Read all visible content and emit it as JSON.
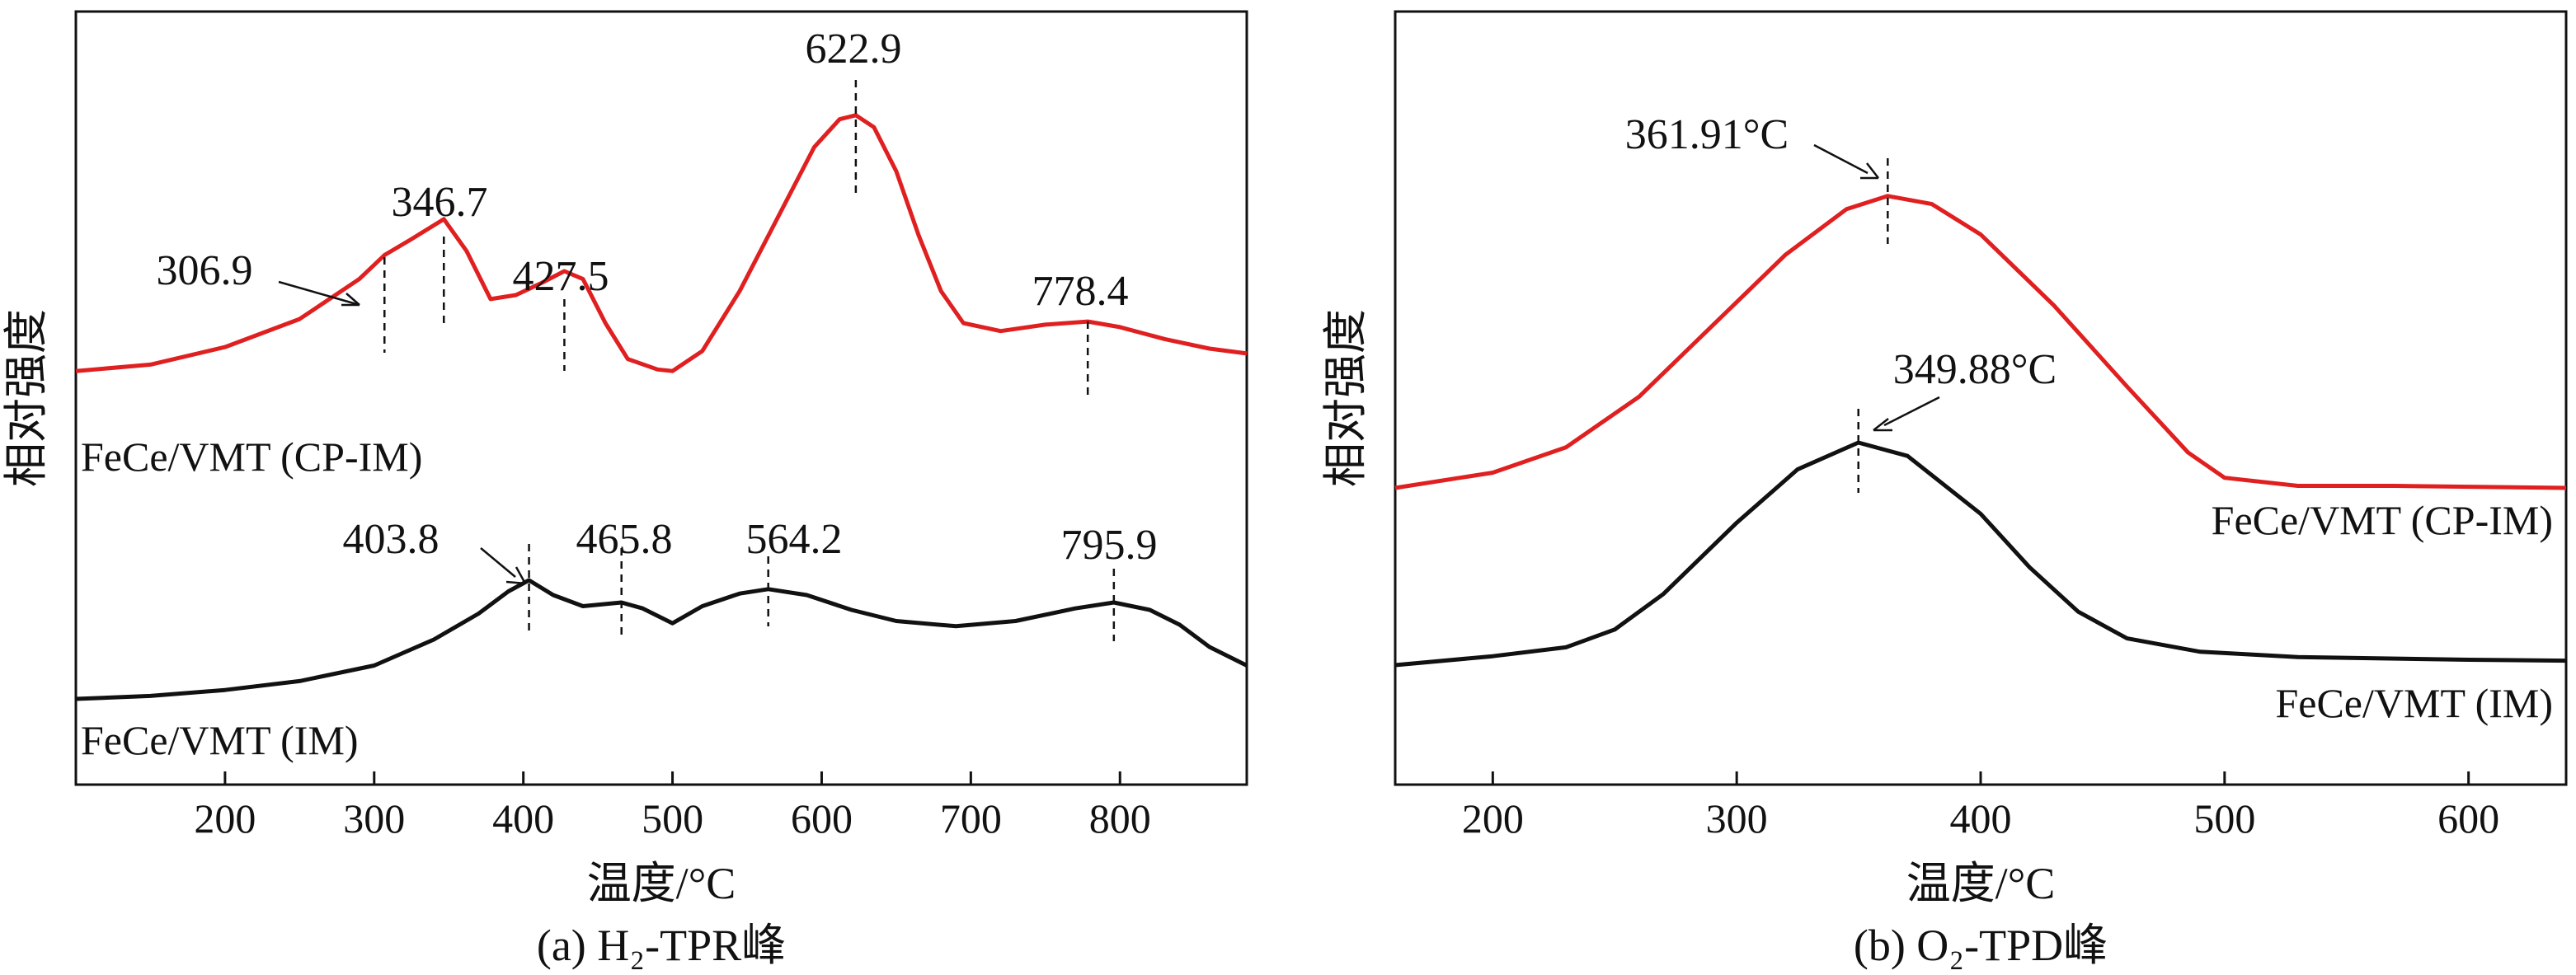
{
  "colors": {
    "cp_im": "#e02020",
    "im": "#111111"
  },
  "chart_data": [
    {
      "type": "line",
      "caption": "(a) H₂-TPR峰",
      "xlabel": "温度/°C",
      "ylabel": "相对强度",
      "xlim": [
        100,
        885
      ],
      "xticks": [
        200,
        300,
        400,
        500,
        600,
        700,
        800
      ],
      "grid": false,
      "series": [
        {
          "name": "FeCe/VMT (CP-IM)",
          "color": "#e02020",
          "points": [
            [
              100,
              0.4
            ],
            [
              150,
              0.48
            ],
            [
              200,
              0.7
            ],
            [
              250,
              1.05
            ],
            [
              290,
              1.55
            ],
            [
              306.9,
              1.85
            ],
            [
              325,
              2.05
            ],
            [
              346.7,
              2.3
            ],
            [
              362,
              1.9
            ],
            [
              378,
              1.3
            ],
            [
              395,
              1.35
            ],
            [
              412,
              1.5
            ],
            [
              427.5,
              1.65
            ],
            [
              440,
              1.55
            ],
            [
              455,
              1.0
            ],
            [
              470,
              0.55
            ],
            [
              490,
              0.42
            ],
            [
              500,
              0.4
            ],
            [
              520,
              0.65
            ],
            [
              545,
              1.4
            ],
            [
              570,
              2.3
            ],
            [
              595,
              3.2
            ],
            [
              612,
              3.55
            ],
            [
              622.9,
              3.6
            ],
            [
              635,
              3.45
            ],
            [
              650,
              2.9
            ],
            [
              665,
              2.1
            ],
            [
              680,
              1.4
            ],
            [
              695,
              1.0
            ],
            [
              720,
              0.9
            ],
            [
              750,
              0.98
            ],
            [
              778.4,
              1.02
            ],
            [
              800,
              0.95
            ],
            [
              830,
              0.8
            ],
            [
              860,
              0.68
            ],
            [
              885,
              0.62
            ]
          ]
        },
        {
          "name": "FeCe/VMT (IM)",
          "color": "#111111",
          "points": [
            [
              100,
              0.0
            ],
            [
              150,
              0.04
            ],
            [
              200,
              0.12
            ],
            [
              250,
              0.24
            ],
            [
              300,
              0.45
            ],
            [
              340,
              0.8
            ],
            [
              370,
              1.15
            ],
            [
              390,
              1.45
            ],
            [
              403.8,
              1.6
            ],
            [
              420,
              1.4
            ],
            [
              440,
              1.25
            ],
            [
              465.8,
              1.3
            ],
            [
              480,
              1.22
            ],
            [
              500,
              1.02
            ],
            [
              520,
              1.25
            ],
            [
              545,
              1.42
            ],
            [
              564.2,
              1.48
            ],
            [
              590,
              1.4
            ],
            [
              620,
              1.2
            ],
            [
              650,
              1.05
            ],
            [
              690,
              0.98
            ],
            [
              730,
              1.05
            ],
            [
              770,
              1.22
            ],
            [
              795.9,
              1.3
            ],
            [
              820,
              1.2
            ],
            [
              840,
              1.0
            ],
            [
              860,
              0.7
            ],
            [
              885,
              0.45
            ]
          ]
        }
      ],
      "peaks": [
        {
          "series": "FeCe/VMT (CP-IM)",
          "x": 306.9,
          "label": "306.9"
        },
        {
          "series": "FeCe/VMT (CP-IM)",
          "x": 346.7,
          "label": "346.7"
        },
        {
          "series": "FeCe/VMT (CP-IM)",
          "x": 427.5,
          "label": "427.5"
        },
        {
          "series": "FeCe/VMT (CP-IM)",
          "x": 622.9,
          "label": "622.9"
        },
        {
          "series": "FeCe/VMT (CP-IM)",
          "x": 778.4,
          "label": "778.4"
        },
        {
          "series": "FeCe/VMT (IM)",
          "x": 403.8,
          "label": "403.8"
        },
        {
          "series": "FeCe/VMT (IM)",
          "x": 465.8,
          "label": "465.8"
        },
        {
          "series": "FeCe/VMT (IM)",
          "x": 564.2,
          "label": "564.2"
        },
        {
          "series": "FeCe/VMT (IM)",
          "x": 795.9,
          "label": "795.9"
        }
      ]
    },
    {
      "type": "line",
      "caption": "(b) O₂-TPD峰",
      "xlabel": "温度/°C",
      "ylabel": "相对强度",
      "xlim": [
        160,
        640
      ],
      "xticks": [
        200,
        300,
        400,
        500,
        600
      ],
      "grid": false,
      "series": [
        {
          "name": "FeCe/VMT (CP-IM)",
          "color": "#e02020",
          "points": [
            [
              160,
              0.0
            ],
            [
              200,
              0.15
            ],
            [
              230,
              0.4
            ],
            [
              260,
              0.9
            ],
            [
              290,
              1.6
            ],
            [
              320,
              2.3
            ],
            [
              345,
              2.75
            ],
            [
              361.91,
              2.88
            ],
            [
              380,
              2.8
            ],
            [
              400,
              2.5
            ],
            [
              430,
              1.8
            ],
            [
              460,
              1.0
            ],
            [
              485,
              0.35
            ],
            [
              500,
              0.1
            ],
            [
              530,
              0.02
            ],
            [
              570,
              0.02
            ],
            [
              640,
              0.0
            ]
          ]
        },
        {
          "name": "FeCe/VMT (IM)",
          "color": "#111111",
          "points": [
            [
              160,
              0.0
            ],
            [
              200,
              0.1
            ],
            [
              230,
              0.2
            ],
            [
              250,
              0.4
            ],
            [
              270,
              0.8
            ],
            [
              300,
              1.6
            ],
            [
              325,
              2.2
            ],
            [
              349.88,
              2.5
            ],
            [
              370,
              2.35
            ],
            [
              400,
              1.7
            ],
            [
              420,
              1.1
            ],
            [
              440,
              0.6
            ],
            [
              460,
              0.3
            ],
            [
              490,
              0.15
            ],
            [
              530,
              0.09
            ],
            [
              600,
              0.06
            ],
            [
              640,
              0.05
            ]
          ]
        }
      ],
      "peaks": [
        {
          "series": "FeCe/VMT (CP-IM)",
          "x": 361.91,
          "label": "361.91°C"
        },
        {
          "series": "FeCe/VMT (IM)",
          "x": 349.88,
          "label": "349.88°C"
        }
      ]
    }
  ]
}
